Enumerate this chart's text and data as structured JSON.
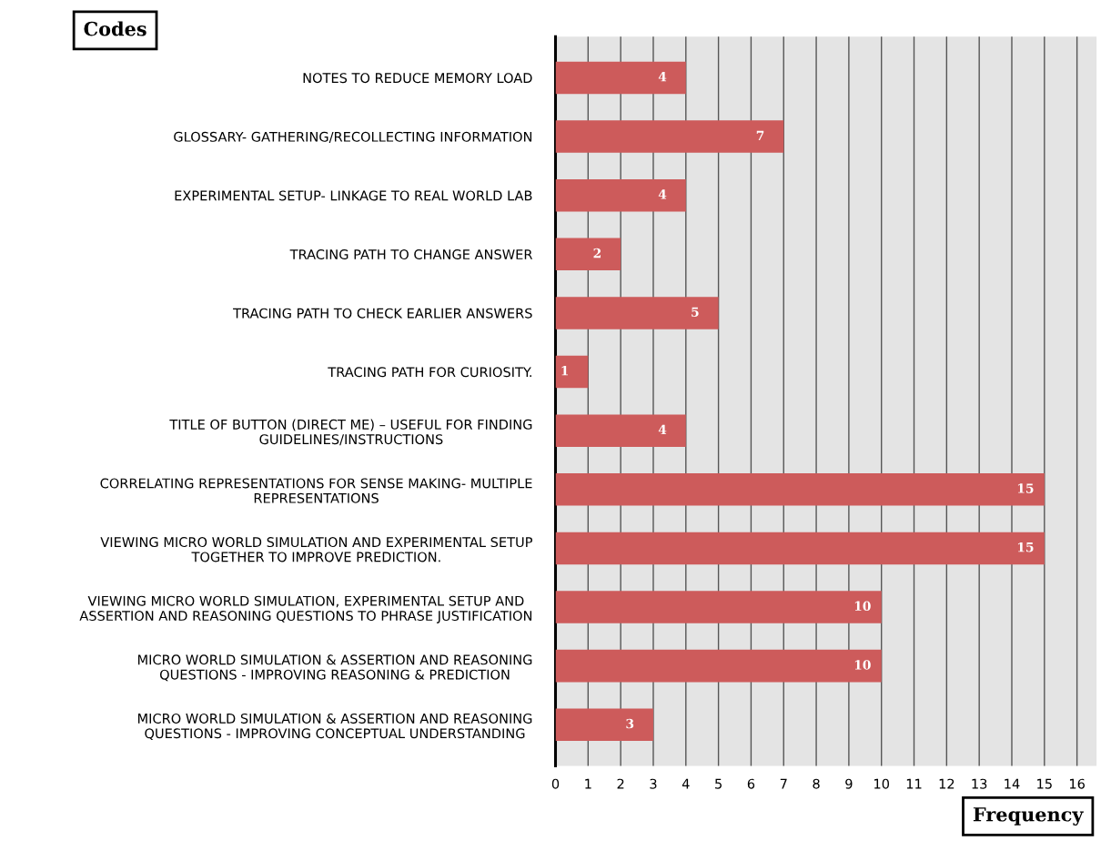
{
  "chart_data": {
    "type": "bar",
    "orientation": "horizontal",
    "xlabel": "Frequency",
    "ylabel": "Codes",
    "categories": [
      "NOTES TO REDUCE MEMORY LOAD",
      "GLOSSARY- GATHERING/RECOLLECTING INFORMATION",
      "EXPERIMENTAL SETUP- LINKAGE TO REAL WORLD LAB",
      "TRACING PATH TO CHANGE ANSWER",
      "TRACING PATH TO CHECK EARLIER ANSWERS",
      "TRACING PATH FOR CURIOSITY.",
      "TITLE OF BUTTON (DIRECT ME) – USEFUL FOR FINDING\nGUIDELINES/INSTRUCTIONS",
      "CORRELATING REPRESENTATIONS FOR SENSE MAKING- MULTIPLE\nREPRESENTATIONS",
      "VIEWING MICRO WORLD SIMULATION AND EXPERIMENTAL SETUP\nTOGETHER TO IMPROVE PREDICTION.",
      "VIEWING MICRO WORLD SIMULATION, EXPERIMENTAL SETUP AND\nASSERTION AND REASONING QUESTIONS TO PHRASE JUSTIFICATION",
      "MICRO WORLD SIMULATION & ASSERTION AND REASONING\nQUESTIONS - IMPROVING REASONING & PREDICTION",
      "MICRO WORLD SIMULATION & ASSERTION AND REASONING\nQUESTIONS - IMPROVING CONCEPTUAL UNDERSTANDING"
    ],
    "values": [
      4,
      7,
      4,
      2,
      5,
      1,
      4,
      15,
      15,
      10,
      10,
      3
    ],
    "color": "#cd5b5b",
    "data_labels": true,
    "xlim": [
      0,
      16.6
    ],
    "xticks": [
      0,
      1,
      2,
      3,
      4,
      5,
      6,
      7,
      8,
      9,
      10,
      11,
      12,
      13,
      14,
      15,
      16
    ],
    "grid": "x"
  }
}
